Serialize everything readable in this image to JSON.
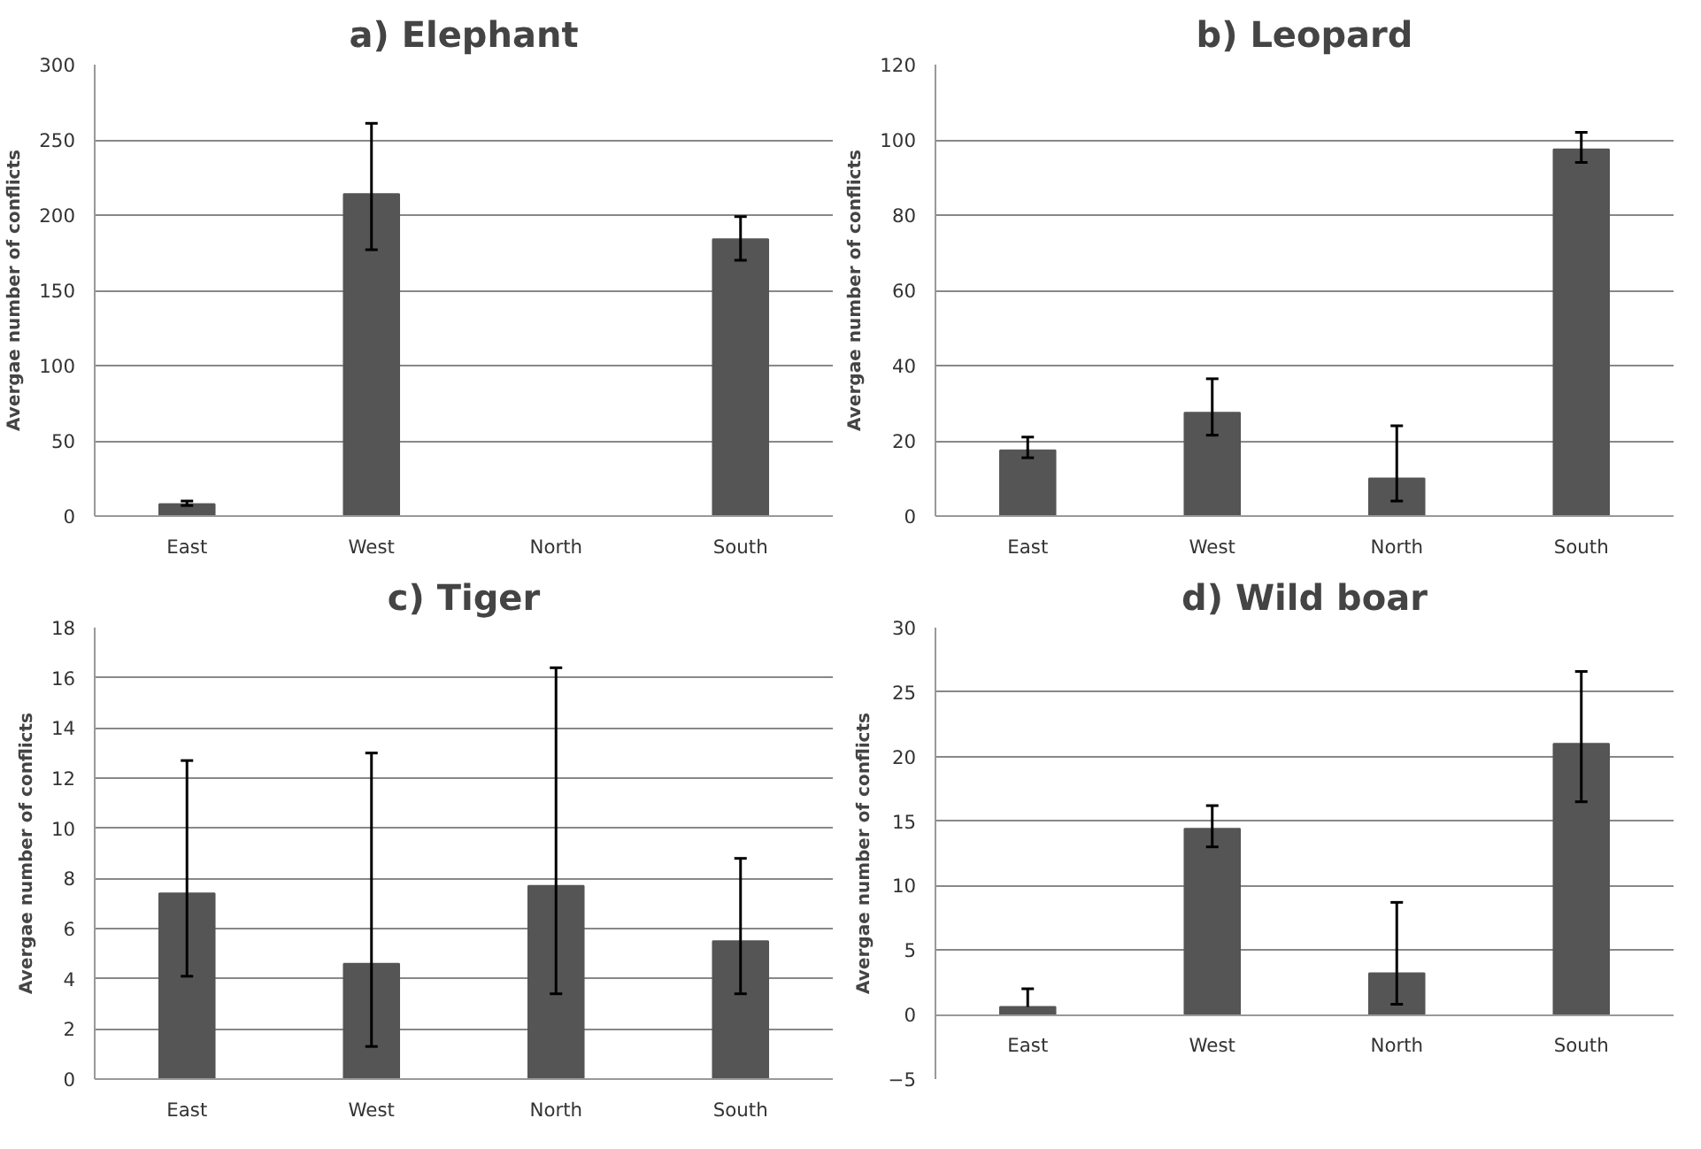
{
  "chart_data": [
    {
      "type": "bar",
      "title": "a) Elephant",
      "ylabel": "Avergae number of conflicts",
      "categories": [
        "East",
        "West",
        "North",
        "South"
      ],
      "values": [
        8,
        214,
        0,
        184
      ],
      "errors": [
        [
          7,
          10
        ],
        [
          177,
          261
        ],
        null,
        [
          170,
          199
        ]
      ],
      "color": "#555555",
      "ylim": [
        0,
        300
      ],
      "yticks": [
        0,
        50,
        100,
        150,
        200,
        250,
        300
      ],
      "grid": "y"
    },
    {
      "type": "bar",
      "title": "b) Leopard",
      "ylabel": "Avergae number of conflicts",
      "categories": [
        "East",
        "West",
        "North",
        "South"
      ],
      "values": [
        17.5,
        27.5,
        10,
        97.5
      ],
      "errors": [
        [
          15.5,
          21
        ],
        [
          21.5,
          36.5
        ],
        [
          4,
          24
        ],
        [
          94,
          102
        ]
      ],
      "color": "#555555",
      "ylim": [
        0,
        120
      ],
      "yticks": [
        0,
        20,
        40,
        60,
        80,
        100,
        120
      ],
      "grid": "y"
    },
    {
      "type": "bar",
      "title": "c) Tiger",
      "ylabel": "Avergae number of conflicts",
      "categories": [
        "East",
        "West",
        "North",
        "South"
      ],
      "values": [
        7.4,
        4.6,
        7.7,
        5.5
      ],
      "errors": [
        [
          4.1,
          12.7
        ],
        [
          1.3,
          13
        ],
        [
          3.4,
          16.4
        ],
        [
          3.4,
          8.8
        ]
      ],
      "color": "#555555",
      "ylim": [
        0,
        18
      ],
      "yticks": [
        0,
        2,
        4,
        6,
        8,
        10,
        12,
        14,
        16,
        18
      ],
      "grid": "y"
    },
    {
      "type": "bar",
      "title": "d) Wild boar",
      "ylabel": "Avergae number of conflicts",
      "categories": [
        "East",
        "West",
        "North",
        "South"
      ],
      "values": [
        0.6,
        14.4,
        3.2,
        21
      ],
      "errors": [
        [
          0.6,
          2
        ],
        [
          13,
          16.2
        ],
        [
          0.8,
          8.7
        ],
        [
          16.5,
          26.6
        ]
      ],
      "color": "#555555",
      "ylim": [
        -5,
        30
      ],
      "yticks": [
        -5,
        0,
        5,
        10,
        15,
        20,
        25,
        30
      ],
      "grid": "y"
    }
  ]
}
